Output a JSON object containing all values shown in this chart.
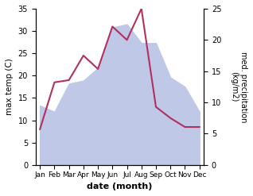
{
  "months": [
    "Jan",
    "Feb",
    "Mar",
    "Apr",
    "May",
    "Jun",
    "Jul",
    "Aug",
    "Sep",
    "Oct",
    "Nov",
    "Dec"
  ],
  "temp": [
    8.0,
    18.5,
    19.0,
    24.5,
    21.5,
    31.0,
    28.0,
    35.0,
    13.0,
    10.5,
    8.5,
    8.5
  ],
  "precip": [
    9.5,
    8.5,
    13.0,
    13.5,
    15.5,
    22.0,
    22.5,
    19.5,
    19.5,
    14.0,
    12.5,
    8.5
  ],
  "temp_color": "#b03060",
  "precip_fill_color": "#c0c8e8",
  "ylabel_left": "max temp (C)",
  "ylabel_right": "med. precipitation\n(kg/m2)",
  "xlabel": "date (month)",
  "ylim_left": [
    0,
    35
  ],
  "ylim_right": [
    0,
    25
  ],
  "yticks_left": [
    0,
    5,
    10,
    15,
    20,
    25,
    30,
    35
  ],
  "yticks_right": [
    0,
    5,
    10,
    15,
    20,
    25
  ],
  "bg_color": "#ffffff"
}
